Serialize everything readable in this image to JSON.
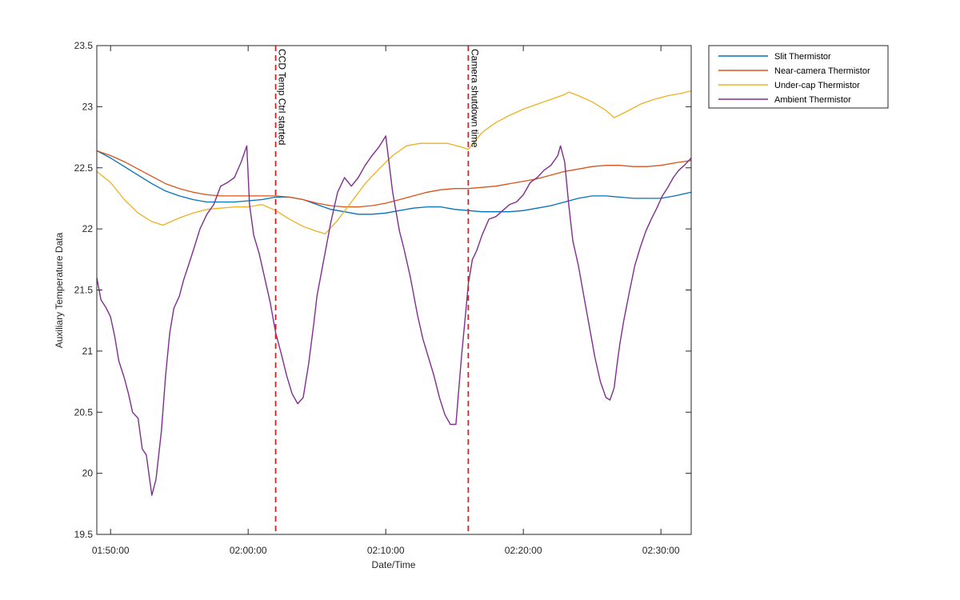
{
  "chart_data": {
    "type": "line",
    "title": "",
    "xlabel": "Date/Time",
    "ylabel": "Auxiliary Temperature Data",
    "xlim_minutes": [
      109,
      152.2
    ],
    "ylim": [
      19.5,
      23.5
    ],
    "x_ticks": [
      {
        "label": "01:50:00",
        "minutes": 110
      },
      {
        "label": "02:00:00",
        "minutes": 120
      },
      {
        "label": "02:10:00",
        "minutes": 130
      },
      {
        "label": "02:20:00",
        "minutes": 140
      },
      {
        "label": "02:30:00",
        "minutes": 150
      }
    ],
    "y_ticks": [
      "19.5",
      "20",
      "20.5",
      "21",
      "21.5",
      "22",
      "22.5",
      "23",
      "23.5"
    ],
    "grid": false,
    "legend_position": "outside-top-right",
    "series": [
      {
        "name": "Slit Thermistor",
        "color": "#0072BD",
        "x": [
          109,
          110,
          111,
          112,
          113,
          114,
          115,
          116,
          117,
          118,
          119,
          120,
          121,
          122,
          123,
          124,
          125,
          126,
          127,
          128,
          129,
          130,
          131,
          132,
          133,
          134,
          135,
          136,
          137,
          138,
          139,
          140,
          141,
          142,
          143,
          144,
          145,
          146,
          147,
          148,
          149,
          150,
          151,
          152.2
        ],
        "y": [
          22.64,
          22.58,
          22.51,
          22.44,
          22.37,
          22.31,
          22.27,
          22.24,
          22.22,
          22.22,
          22.22,
          22.23,
          22.24,
          22.26,
          22.26,
          22.24,
          22.2,
          22.16,
          22.14,
          22.12,
          22.12,
          22.13,
          22.15,
          22.17,
          22.18,
          22.18,
          22.16,
          22.15,
          22.14,
          22.14,
          22.14,
          22.15,
          22.17,
          22.19,
          22.22,
          22.25,
          22.27,
          22.27,
          22.26,
          22.25,
          22.25,
          22.25,
          22.27,
          22.3
        ]
      },
      {
        "name": "Near-camera Thermistor",
        "color": "#D95319",
        "x": [
          109,
          110,
          111,
          112,
          113,
          114,
          115,
          116,
          117,
          118,
          119,
          120,
          121,
          122,
          123,
          124,
          125,
          126,
          127,
          128,
          129,
          130,
          131,
          132,
          133,
          134,
          135,
          136,
          137,
          138,
          139,
          140,
          141,
          142,
          143,
          144,
          145,
          146,
          147,
          148,
          149,
          150,
          151,
          152.2
        ],
        "y": [
          22.64,
          22.6,
          22.55,
          22.49,
          22.43,
          22.37,
          22.33,
          22.3,
          22.28,
          22.27,
          22.27,
          22.27,
          22.27,
          22.27,
          22.26,
          22.24,
          22.21,
          22.19,
          22.18,
          22.18,
          22.19,
          22.21,
          22.24,
          22.27,
          22.3,
          22.32,
          22.33,
          22.33,
          22.34,
          22.35,
          22.37,
          22.39,
          22.41,
          22.44,
          22.47,
          22.49,
          22.51,
          22.52,
          22.52,
          22.51,
          22.51,
          22.52,
          22.54,
          22.56
        ]
      },
      {
        "name": "Under-cap Thermistor",
        "color": "#EDB120",
        "x": [
          109,
          110,
          111,
          112,
          113,
          113.8,
          115,
          116,
          117,
          118,
          119,
          120,
          121,
          122,
          123,
          124,
          125,
          125.6,
          126.5,
          127.5,
          128.5,
          129.5,
          130.5,
          131.5,
          132.5,
          133.5,
          134.5,
          135.5,
          136,
          137,
          138,
          139,
          140,
          141,
          142,
          143,
          143.3,
          144,
          145,
          146,
          146.6,
          147.5,
          148.5,
          149.5,
          150.5,
          151.5,
          152.2
        ],
        "y": [
          22.47,
          22.38,
          22.24,
          22.13,
          22.06,
          22.03,
          22.09,
          22.13,
          22.16,
          22.17,
          22.18,
          22.18,
          22.2,
          22.15,
          22.08,
          22.02,
          21.98,
          21.96,
          22.07,
          22.22,
          22.37,
          22.49,
          22.6,
          22.68,
          22.7,
          22.7,
          22.7,
          22.67,
          22.65,
          22.79,
          22.87,
          22.93,
          22.98,
          23.02,
          23.06,
          23.1,
          23.12,
          23.09,
          23.04,
          22.97,
          22.91,
          22.96,
          23.02,
          23.06,
          23.09,
          23.11,
          23.13
        ]
      },
      {
        "name": "Ambient Thermistor",
        "color": "#7E2F8E",
        "x": [
          109,
          109.3,
          109.7,
          110,
          110.3,
          110.6,
          111,
          111.3,
          111.6,
          112,
          112.3,
          112.6,
          113,
          113.3,
          113.7,
          114,
          114.3,
          114.6,
          115,
          115.3,
          115.6,
          116,
          116.5,
          117,
          117.5,
          118,
          118.5,
          119,
          119.5,
          119.9,
          120.1,
          120.4,
          120.8,
          121.2,
          121.6,
          122,
          122.4,
          122.8,
          123.2,
          123.6,
          124,
          124.4,
          124.8,
          125,
          125.5,
          126,
          126.5,
          127,
          127.5,
          128,
          128.5,
          129,
          129.5,
          130,
          130.5,
          131,
          131.3,
          131.6,
          131.8,
          132.3,
          132.7,
          133.1,
          133.5,
          133.9,
          134.3,
          134.7,
          135.1,
          135.5,
          135.8,
          136,
          136.3,
          136.6,
          137,
          137.5,
          138,
          138.5,
          139,
          139.5,
          140,
          140.5,
          141,
          141.5,
          142,
          142.5,
          142.7,
          143,
          143.3,
          143.6,
          144,
          144.4,
          144.8,
          145.2,
          145.6,
          146,
          146.3,
          146.6,
          146.8,
          147,
          147.3,
          147.7,
          148.1,
          148.5,
          148.9,
          149.3,
          149.7,
          150.1,
          150.5,
          150.9,
          151.3,
          151.7,
          152.2
        ],
        "y": [
          21.6,
          21.42,
          21.35,
          21.28,
          21.12,
          20.92,
          20.78,
          20.65,
          20.5,
          20.45,
          20.2,
          20.15,
          19.82,
          19.95,
          20.35,
          20.8,
          21.15,
          21.35,
          21.45,
          21.58,
          21.68,
          21.82,
          22.0,
          22.12,
          22.2,
          22.35,
          22.38,
          22.42,
          22.55,
          22.68,
          22.2,
          21.95,
          21.8,
          21.6,
          21.4,
          21.15,
          20.98,
          20.8,
          20.65,
          20.57,
          20.62,
          20.9,
          21.25,
          21.45,
          21.75,
          22.05,
          22.3,
          22.42,
          22.35,
          22.42,
          22.52,
          22.6,
          22.67,
          22.76,
          22.3,
          21.98,
          21.85,
          21.7,
          21.6,
          21.3,
          21.1,
          20.95,
          20.8,
          20.62,
          20.48,
          20.4,
          20.4,
          20.95,
          21.3,
          21.55,
          21.75,
          21.82,
          21.95,
          22.08,
          22.1,
          22.15,
          22.2,
          22.22,
          22.28,
          22.38,
          22.42,
          22.48,
          22.52,
          22.6,
          22.68,
          22.55,
          22.2,
          21.9,
          21.7,
          21.45,
          21.2,
          20.95,
          20.75,
          20.62,
          20.6,
          20.7,
          20.88,
          21.05,
          21.25,
          21.48,
          21.7,
          21.85,
          21.98,
          22.08,
          22.17,
          22.27,
          22.34,
          22.42,
          22.48,
          22.52,
          22.58
        ]
      }
    ],
    "annotations": [
      {
        "label": "CCD Temp Ctrl started",
        "x_minutes": 122,
        "color": "#E5191E",
        "style": "dashed"
      },
      {
        "label": "Camera shutdown time",
        "x_minutes": 136,
        "color": "#E5191E",
        "style": "dashed"
      }
    ]
  }
}
